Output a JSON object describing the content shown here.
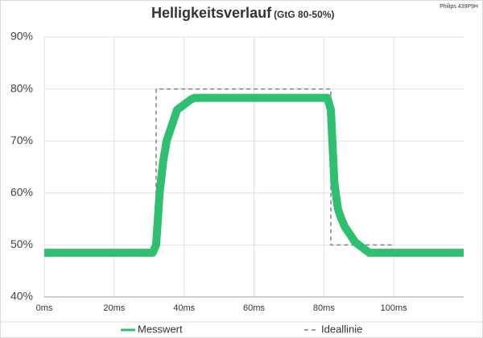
{
  "chart_data": {
    "type": "line",
    "title": "Helligkeitsverlauf",
    "subtitle": "(GtG 80-50%)",
    "annotation": "Philips 439P9H",
    "x": [
      0,
      1,
      2,
      3,
      4,
      5,
      6,
      7,
      8,
      9,
      10,
      11,
      12,
      13,
      14,
      15,
      16,
      17,
      18,
      19,
      20,
      21,
      22,
      23,
      24,
      25,
      26,
      27,
      28,
      29,
      30,
      31,
      32,
      33,
      34,
      35,
      36,
      37,
      38,
      39,
      40,
      41,
      42,
      43,
      44,
      45,
      46,
      47,
      48,
      49,
      50,
      51,
      52,
      53,
      54,
      55,
      56,
      57,
      58,
      59,
      60,
      61,
      62,
      63,
      64,
      65,
      66,
      67,
      68,
      69,
      70,
      71,
      72,
      73,
      74,
      75,
      76,
      77,
      78,
      79,
      80,
      81,
      82,
      83,
      84,
      85,
      86,
      87,
      88,
      89,
      90,
      91,
      92,
      93,
      94,
      95,
      96,
      97,
      98,
      99,
      100,
      101,
      102,
      103,
      104,
      105,
      106,
      107,
      108,
      109,
      110,
      111,
      112,
      113,
      114,
      115,
      116,
      117,
      118,
      119,
      120
    ],
    "series": [
      {
        "name": "Messwert",
        "color": "#2fbf71",
        "x": null,
        "values": [
          48.5,
          48.5,
          48.5,
          48.5,
          48.5,
          48.5,
          48.5,
          48.5,
          48.5,
          48.5,
          48.5,
          48.5,
          48.5,
          48.5,
          48.5,
          48.5,
          48.5,
          48.5,
          48.5,
          48.5,
          48.5,
          48.5,
          48.5,
          48.5,
          48.5,
          48.5,
          48.5,
          48.5,
          48.5,
          48.5,
          48.5,
          48.5,
          50,
          60,
          66,
          70,
          72,
          74,
          76,
          76.5,
          77,
          77.5,
          78,
          78.3,
          78.3,
          78.3,
          78.3,
          78.3,
          78.3,
          78.3,
          78.3,
          78.3,
          78.3,
          78.3,
          78.3,
          78.3,
          78.3,
          78.3,
          78.3,
          78.3,
          78.3,
          78.3,
          78.3,
          78.3,
          78.3,
          78.3,
          78.3,
          78.3,
          78.3,
          78.3,
          78.3,
          78.3,
          78.3,
          78.3,
          78.3,
          78.3,
          78.3,
          78.3,
          78.3,
          78.3,
          78.3,
          78.3,
          76,
          62,
          57,
          55,
          53.5,
          52.5,
          51.5,
          50.5,
          50,
          49.5,
          49,
          48.5,
          48.5,
          48.5,
          48.5,
          48.5,
          48.5,
          48.5,
          48.5,
          48.5,
          48.5,
          48.5,
          48.5,
          48.5,
          48.5,
          48.5,
          48.5,
          48.5,
          48.5,
          48.5,
          48.5,
          48.5,
          48.5,
          48.5,
          48.5,
          48.5,
          48.5,
          48.5,
          48.5
        ]
      },
      {
        "name": "Ideallinie",
        "color": "#808080",
        "dashed": true,
        "x": [
          32,
          32,
          82,
          82,
          100
        ],
        "values": [
          50,
          80,
          80,
          50,
          50
        ]
      }
    ],
    "xlim": [
      0,
      120
    ],
    "xticks": [
      {
        "value": 0,
        "label": "0ms"
      },
      {
        "value": 20,
        "label": "20ms"
      },
      {
        "value": 40,
        "label": "40ms"
      },
      {
        "value": 60,
        "label": "60ms"
      },
      {
        "value": 80,
        "label": "80ms"
      },
      {
        "value": 100,
        "label": "100ms"
      }
    ],
    "ylim": [
      40,
      90
    ],
    "yticks": [
      {
        "value": 40,
        "label": "40%"
      },
      {
        "value": 50,
        "label": "50%"
      },
      {
        "value": 60,
        "label": "60%"
      },
      {
        "value": 70,
        "label": "70%"
      },
      {
        "value": 80,
        "label": "80%"
      },
      {
        "value": 90,
        "label": "90%"
      }
    ],
    "grid": true
  }
}
